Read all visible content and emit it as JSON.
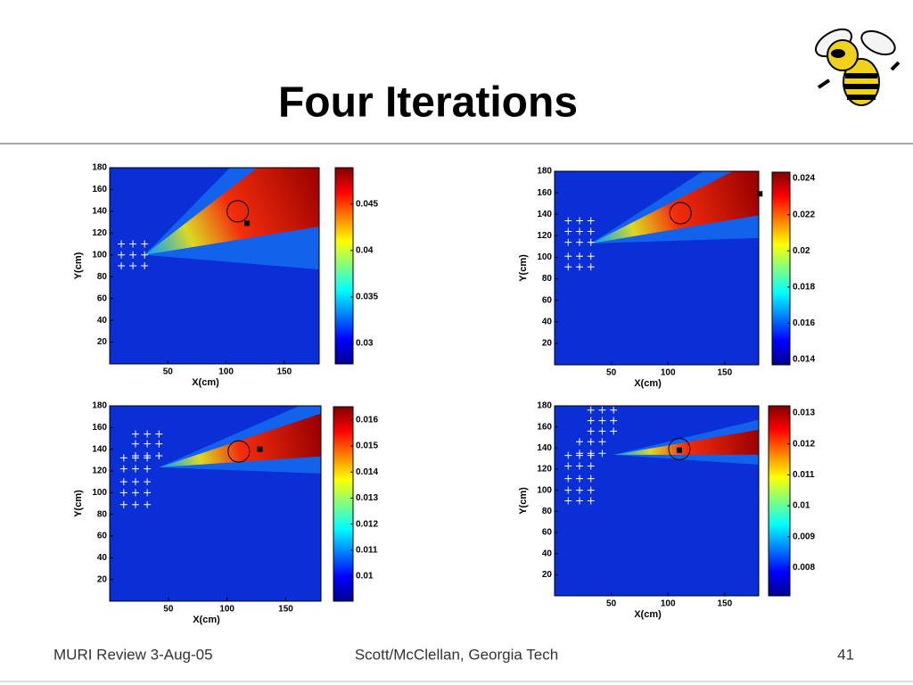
{
  "header": {
    "title": "Four Iterations"
  },
  "chart_data": [
    {
      "type": "heatmap",
      "xlabel": "X(cm)",
      "ylabel": "Y(cm)",
      "xlim": [
        0,
        180
      ],
      "ylim": [
        0,
        180
      ],
      "xticks": [
        50,
        100,
        150
      ],
      "yticks": [
        20,
        40,
        60,
        80,
        100,
        120,
        140,
        160,
        180
      ],
      "clim": [
        0.0278,
        0.0489
      ],
      "cticks": [
        0.03,
        0.035,
        0.04,
        0.045
      ],
      "sensors": {
        "x": [
          10,
          20,
          30,
          10,
          20,
          30,
          10,
          20,
          30
        ],
        "y": [
          110,
          110,
          110,
          100,
          100,
          100,
          90,
          90,
          90
        ]
      },
      "target": {
        "x": 110,
        "y": 140
      },
      "estimate": {
        "x": 118,
        "y": 129
      }
    },
    {
      "type": "heatmap",
      "xlabel": "X(cm)",
      "ylabel": "Y(cm)",
      "xlim": [
        0,
        180
      ],
      "ylim": [
        0,
        180
      ],
      "xticks": [
        50,
        100,
        150
      ],
      "yticks": [
        20,
        40,
        60,
        80,
        100,
        120,
        140,
        160,
        180
      ],
      "clim": [
        0.0137,
        0.02435
      ],
      "cticks": [
        0.014,
        0.016,
        0.018,
        0.02,
        0.022,
        0.024
      ],
      "sensors": {
        "x": [
          12,
          22,
          32,
          12,
          22,
          32,
          12,
          22,
          32,
          12,
          22,
          32,
          12,
          22,
          32
        ],
        "y": [
          134,
          134,
          134,
          124,
          124,
          124,
          114,
          114,
          114,
          101,
          101,
          101,
          91,
          91,
          91
        ]
      },
      "target": {
        "x": 111,
        "y": 141
      },
      "estimate": {
        "x": 181,
        "y": 159
      }
    },
    {
      "type": "heatmap",
      "xlabel": "X(cm)",
      "ylabel": "Y(cm)",
      "xlim": [
        0,
        180
      ],
      "ylim": [
        0,
        180
      ],
      "xticks": [
        50,
        100,
        150
      ],
      "yticks": [
        20,
        40,
        60,
        80,
        100,
        120,
        140,
        160,
        180
      ],
      "clim": [
        0.00904,
        0.01651
      ],
      "cticks": [
        0.01,
        0.011,
        0.012,
        0.013,
        0.014,
        0.015,
        0.016
      ],
      "sensors": {
        "x": [
          22,
          32,
          42,
          22,
          32,
          42,
          22,
          32,
          42,
          12,
          22,
          32,
          12,
          22,
          32,
          12,
          22,
          32,
          12,
          22,
          32,
          12,
          22,
          32
        ],
        "y": [
          154,
          154,
          154,
          145,
          145,
          145,
          134,
          134,
          134,
          132,
          132,
          132,
          122,
          122,
          122,
          110,
          110,
          110,
          100,
          100,
          100,
          89,
          89,
          89
        ]
      },
      "target": {
        "x": 110,
        "y": 138
      },
      "estimate": {
        "x": 128,
        "y": 140
      }
    },
    {
      "type": "heatmap",
      "xlabel": "X(cm)",
      "ylabel": "Y(cm)",
      "xlim": [
        0,
        180
      ],
      "ylim": [
        0,
        180
      ],
      "xticks": [
        50,
        100,
        150
      ],
      "yticks": [
        20,
        40,
        60,
        80,
        100,
        120,
        140,
        160,
        180
      ],
      "clim": [
        0.00709,
        0.01323
      ],
      "cticks": [
        0.008,
        0.009,
        0.01,
        0.011,
        0.012,
        0.013
      ],
      "sensors": {
        "x": [
          32,
          42,
          52,
          32,
          42,
          52,
          32,
          42,
          52,
          22,
          32,
          42,
          22,
          32,
          42,
          12,
          22,
          32,
          12,
          22,
          32,
          12,
          22,
          32,
          12,
          22,
          32,
          12,
          22,
          32
        ],
        "y": [
          176,
          176,
          176,
          166,
          166,
          166,
          156,
          156,
          156,
          146,
          146,
          146,
          135,
          135,
          135,
          133,
          133,
          133,
          123,
          123,
          123,
          111,
          111,
          111,
          100,
          100,
          100,
          90,
          90,
          90
        ]
      },
      "target": {
        "x": 110,
        "y": 139
      },
      "estimate": {
        "x": 110,
        "y": 138
      }
    }
  ],
  "footer": {
    "left": "MURI Review 3-Aug-05",
    "center": "Scott/McClellan, Georgia Tech",
    "page": "41"
  }
}
